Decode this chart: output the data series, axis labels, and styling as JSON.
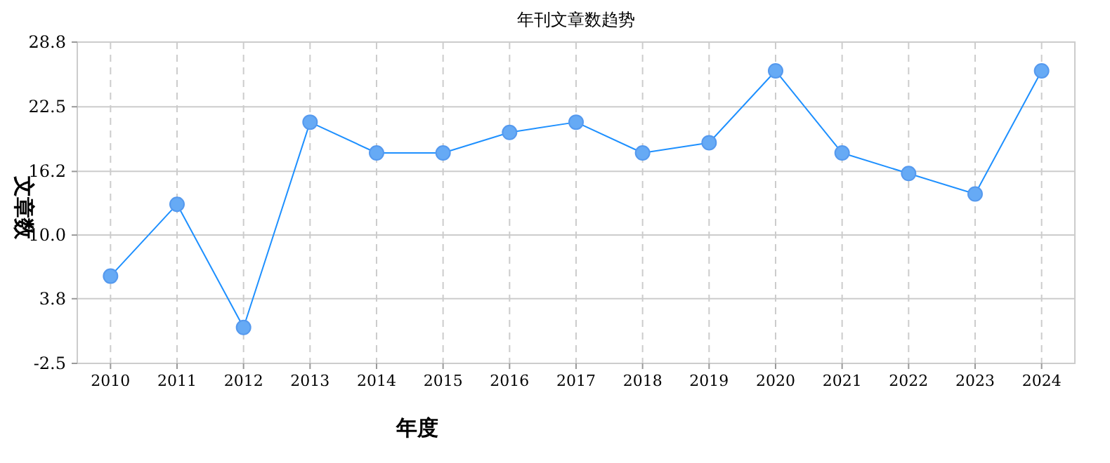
{
  "chart_data": {
    "type": "line",
    "title": "年刊文章数趋势",
    "xlabel": "年度",
    "ylabel": "文章数",
    "categories": [
      "2010",
      "2011",
      "2012",
      "2013",
      "2014",
      "2015",
      "2016",
      "2017",
      "2018",
      "2019",
      "2020",
      "2021",
      "2022",
      "2023",
      "2024"
    ],
    "series": [
      {
        "color": "#1e90ff",
        "values": [
          6,
          13,
          1,
          21,
          18,
          18,
          20,
          21,
          18,
          19,
          26,
          18,
          16,
          14,
          26
        ]
      }
    ],
    "ylim": [
      -2.5,
      28.8
    ],
    "yticks": [
      -2.5,
      3.8,
      {
        "value": 10,
        "label": "10.0"
      },
      16.2,
      22.5,
      28.8
    ],
    "grid": true,
    "marker": "circle",
    "line_style": "solid"
  }
}
